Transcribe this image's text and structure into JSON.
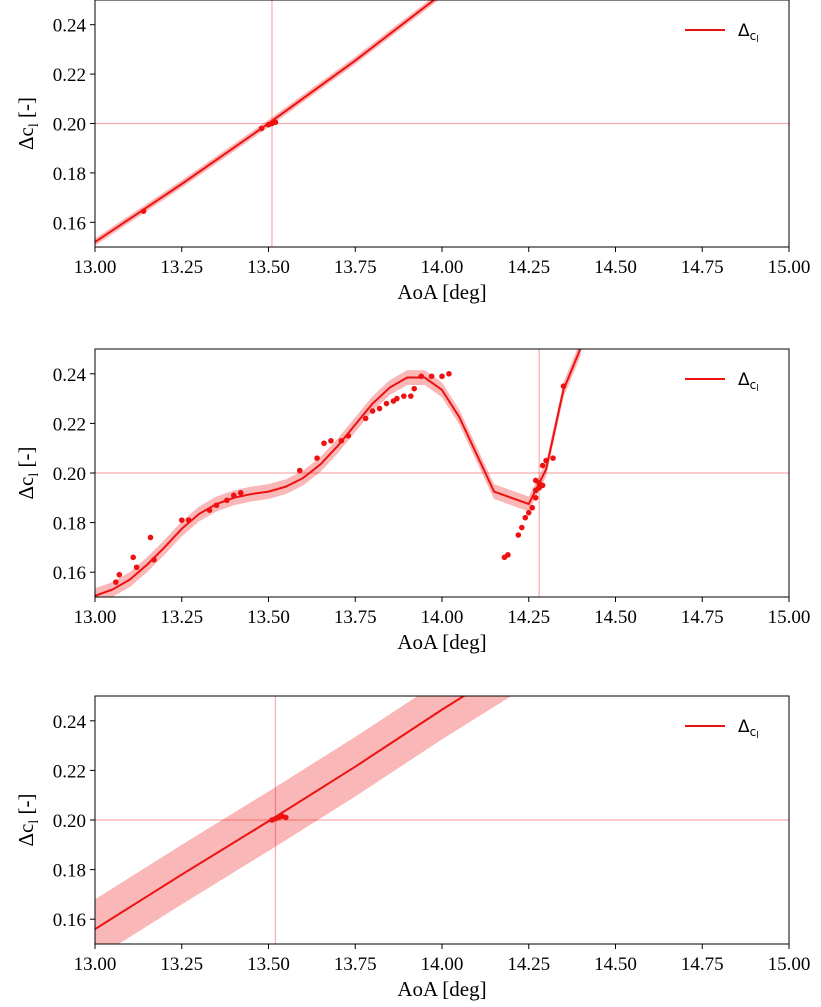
{
  "chart_data": [
    {
      "type": "line",
      "xlabel": "AoA [deg]",
      "ylabel_main": "Δc",
      "ylabel_sub": "l",
      "ylabel_tail": " [-]",
      "legend": {
        "main": "Δ",
        "sub": "c",
        "subsub": "l",
        "placement": "top-right"
      },
      "xlim": [
        13.0,
        15.0
      ],
      "ylim": [
        0.15,
        0.25
      ],
      "xticks": [
        "13.00",
        "13.25",
        "13.50",
        "13.75",
        "14.00",
        "14.25",
        "14.50",
        "14.75",
        "15.00"
      ],
      "yticks": [
        "0.16",
        "0.18",
        "0.20",
        "0.22",
        "0.24"
      ],
      "hline": 0.2,
      "vline": 13.51,
      "series": [
        {
          "x": [
            13.0,
            13.25,
            13.5,
            13.75,
            14.0,
            14.05
          ],
          "y": [
            0.152,
            0.1755,
            0.2,
            0.2255,
            0.2525,
            0.258
          ],
          "band": 0.0015
        }
      ],
      "points": [
        [
          13.14,
          0.1645
        ],
        [
          13.48,
          0.198
        ],
        [
          13.5,
          0.1995
        ],
        [
          13.51,
          0.2
        ],
        [
          13.52,
          0.2005
        ]
      ],
      "color": "#ee1111"
    },
    {
      "type": "line",
      "xlabel": "AoA [deg]",
      "ylabel_main": "Δc",
      "ylabel_sub": "l",
      "ylabel_tail": " [-]",
      "legend": {
        "main": "Δ",
        "sub": "c",
        "subsub": "l",
        "placement": "top-right"
      },
      "xlim": [
        13.0,
        15.0
      ],
      "ylim": [
        0.15,
        0.25
      ],
      "xticks": [
        "13.00",
        "13.25",
        "13.50",
        "13.75",
        "14.00",
        "14.25",
        "14.50",
        "14.75",
        "15.00"
      ],
      "yticks": [
        "0.16",
        "0.18",
        "0.20",
        "0.22",
        "0.24"
      ],
      "hline": 0.2,
      "vline": 14.28,
      "series": [
        {
          "x": [
            13.0,
            13.05,
            13.1,
            13.15,
            13.2,
            13.25,
            13.3,
            13.35,
            13.4,
            13.45,
            13.5,
            13.55,
            13.6,
            13.65,
            13.7,
            13.75,
            13.8,
            13.85,
            13.9,
            13.95,
            14.0,
            14.05,
            14.1,
            14.15,
            14.2,
            14.25,
            14.3,
            14.35,
            14.4
          ],
          "y": [
            0.1505,
            0.153,
            0.157,
            0.163,
            0.17,
            0.1775,
            0.1835,
            0.1875,
            0.19,
            0.1915,
            0.1925,
            0.1945,
            0.198,
            0.2035,
            0.211,
            0.2195,
            0.228,
            0.2345,
            0.2385,
            0.2385,
            0.2335,
            0.2225,
            0.2075,
            0.1925,
            0.19,
            0.1875,
            0.2015,
            0.2335,
            0.2505
          ],
          "band": 0.003
        }
      ],
      "points": [
        [
          13.06,
          0.156
        ],
        [
          13.07,
          0.159
        ],
        [
          13.11,
          0.166
        ],
        [
          13.12,
          0.162
        ],
        [
          13.16,
          0.174
        ],
        [
          13.17,
          0.165
        ],
        [
          13.25,
          0.181
        ],
        [
          13.27,
          0.181
        ],
        [
          13.33,
          0.185
        ],
        [
          13.35,
          0.187
        ],
        [
          13.38,
          0.189
        ],
        [
          13.4,
          0.191
        ],
        [
          13.42,
          0.192
        ],
        [
          13.59,
          0.201
        ],
        [
          13.64,
          0.206
        ],
        [
          13.66,
          0.212
        ],
        [
          13.68,
          0.213
        ],
        [
          13.71,
          0.213
        ],
        [
          13.73,
          0.215
        ],
        [
          13.78,
          0.222
        ],
        [
          13.8,
          0.225
        ],
        [
          13.82,
          0.226
        ],
        [
          13.84,
          0.228
        ],
        [
          13.86,
          0.229
        ],
        [
          13.87,
          0.23
        ],
        [
          13.89,
          0.231
        ],
        [
          13.91,
          0.231
        ],
        [
          13.92,
          0.234
        ],
        [
          13.94,
          0.239
        ],
        [
          13.97,
          0.239
        ],
        [
          14.0,
          0.239
        ],
        [
          14.02,
          0.24
        ],
        [
          14.18,
          0.166
        ],
        [
          14.19,
          0.167
        ],
        [
          14.22,
          0.175
        ],
        [
          14.23,
          0.178
        ],
        [
          14.24,
          0.182
        ],
        [
          14.25,
          0.184
        ],
        [
          14.26,
          0.186
        ],
        [
          14.27,
          0.19
        ],
        [
          14.27,
          0.193
        ],
        [
          14.27,
          0.197
        ],
        [
          14.28,
          0.196
        ],
        [
          14.28,
          0.194
        ],
        [
          14.29,
          0.195
        ],
        [
          14.29,
          0.203
        ],
        [
          14.3,
          0.205
        ],
        [
          14.32,
          0.206
        ],
        [
          14.35,
          0.235
        ]
      ],
      "color": "#ee1111"
    },
    {
      "type": "line",
      "xlabel": "AoA [deg]",
      "ylabel_main": "Δc",
      "ylabel_sub": "l",
      "ylabel_tail": " [-]",
      "legend": {
        "main": "Δ",
        "sub": "c",
        "subsub": "l",
        "placement": "top-right"
      },
      "xlim": [
        13.0,
        15.0
      ],
      "ylim": [
        0.15,
        0.25
      ],
      "xticks": [
        "13.00",
        "13.25",
        "13.50",
        "13.75",
        "14.00",
        "14.25",
        "14.50",
        "14.75",
        "15.00"
      ],
      "yticks": [
        "0.16",
        "0.18",
        "0.20",
        "0.22",
        "0.24"
      ],
      "hline": 0.2,
      "vline": 13.52,
      "series": [
        {
          "x": [
            13.0,
            13.25,
            13.5,
            13.75,
            14.0,
            14.2
          ],
          "y": [
            0.156,
            0.178,
            0.1995,
            0.2215,
            0.2445,
            0.262
          ],
          "band": 0.012
        }
      ],
      "points": [
        [
          13.51,
          0.2
        ],
        [
          13.52,
          0.2005
        ],
        [
          13.53,
          0.201
        ],
        [
          13.54,
          0.2015
        ],
        [
          13.55,
          0.201
        ]
      ],
      "color": "#ee1111"
    }
  ]
}
